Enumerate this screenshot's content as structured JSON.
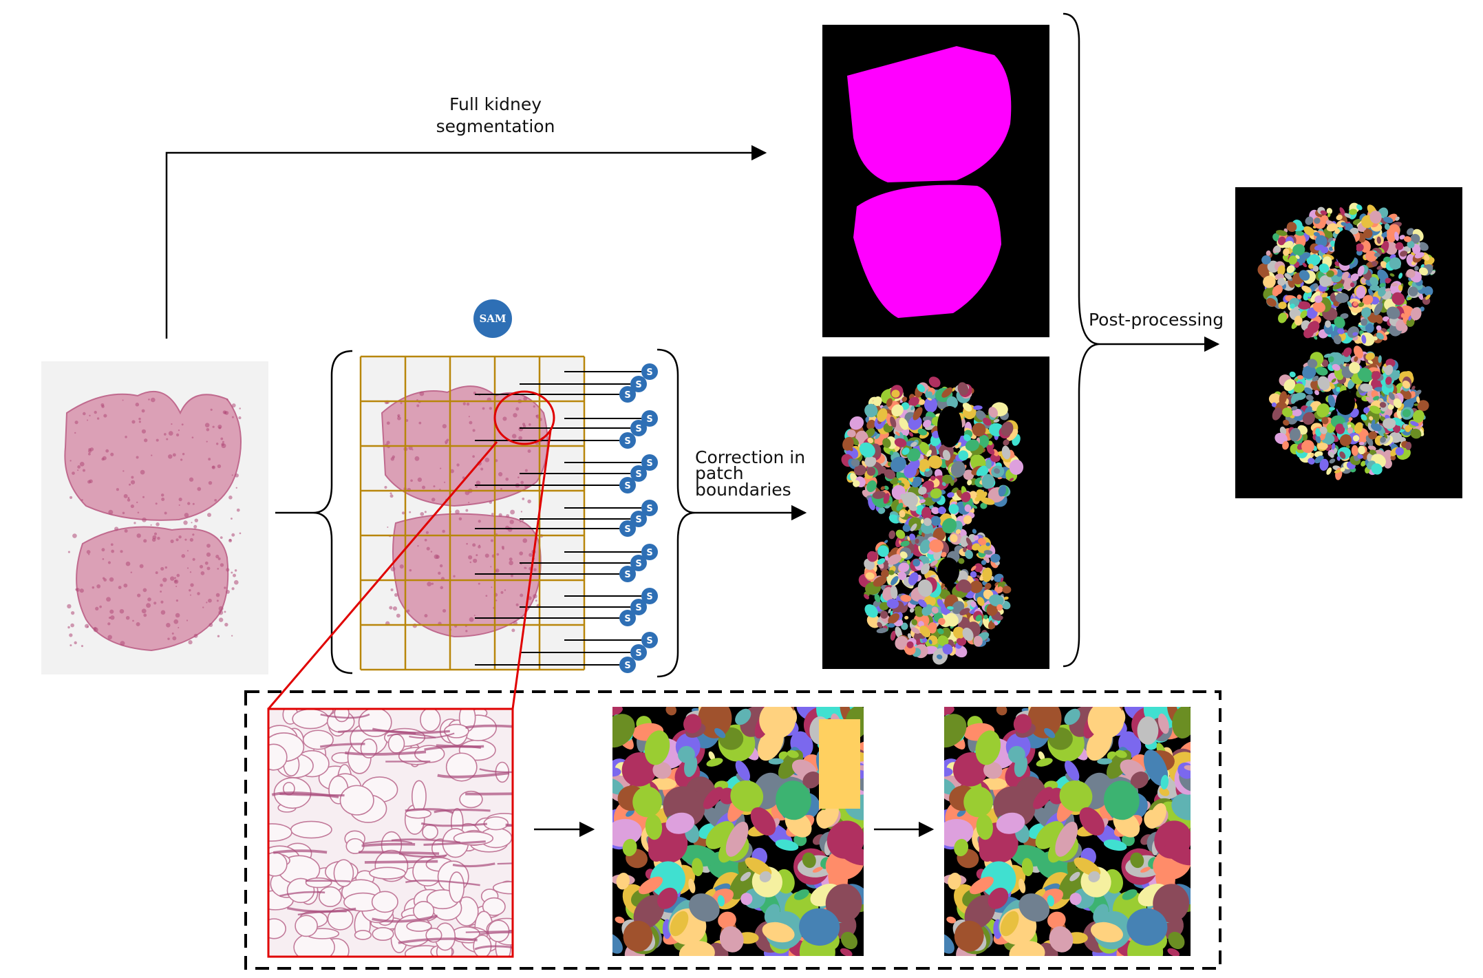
{
  "labels": {
    "full_kidney_line1": "Full kidney",
    "full_kidney_line2": "segmentation",
    "correction_line1": "Correction in",
    "correction_line2": "patch",
    "correction_line3": "boundaries",
    "post_processing": "Post-processing",
    "sam_badge": "SAM",
    "s_badge": "S"
  },
  "colors": {
    "grid": "#b8860b",
    "zoom": "#e00000",
    "mask": "#ff00ff",
    "badge": "#2e6fb5",
    "tissue": "#d98aa8",
    "segment_palette": [
      "#e8c040",
      "#6b8e23",
      "#8b4a5a",
      "#d9a0b0",
      "#5fb3b3",
      "#f5f0a0",
      "#7b68ee",
      "#ff8c69",
      "#3cb371",
      "#c0c0c0",
      "#b03060",
      "#4682b4",
      "#ffd27f",
      "#9acd32",
      "#dda0dd",
      "#40e0d0",
      "#a0522d",
      "#708090"
    ]
  },
  "icons": {
    "arrow": "arrow-right-icon",
    "brace": "curly-brace-icon",
    "badge": "sam-model-icon"
  }
}
